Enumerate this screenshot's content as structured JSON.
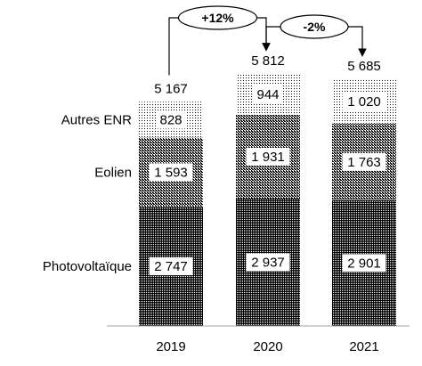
{
  "chart_data": {
    "type": "bar",
    "stacked": true,
    "categories": [
      "2019",
      "2020",
      "2021"
    ],
    "series": [
      {
        "name": "Photovoltaïque",
        "values": [
          2747,
          2937,
          2901
        ],
        "value_labels": [
          "2 747",
          "2 937",
          "2 901"
        ],
        "pattern": "dense-dots",
        "color": "#000000"
      },
      {
        "name": "Eolien",
        "values": [
          1593,
          1931,
          1763
        ],
        "value_labels": [
          "1 593",
          "1 931",
          "1 763"
        ],
        "pattern": "medium-dots",
        "color": "#000000"
      },
      {
        "name": "Autres ENR",
        "values": [
          828,
          944,
          1020
        ],
        "value_labels": [
          "828",
          "944",
          "1 020"
        ],
        "pattern": "light-dots",
        "color": "#000000"
      }
    ],
    "totals": [
      5167,
      5812,
      5685
    ],
    "total_labels": [
      "5 167",
      "5 812",
      "5 685"
    ],
    "growth_annotations": [
      {
        "from": "2019",
        "to": "2020",
        "label": "+12%"
      },
      {
        "from": "2020",
        "to": "2021",
        "label": "-2%"
      }
    ],
    "legend": "left, inline labels",
    "grid": false
  }
}
